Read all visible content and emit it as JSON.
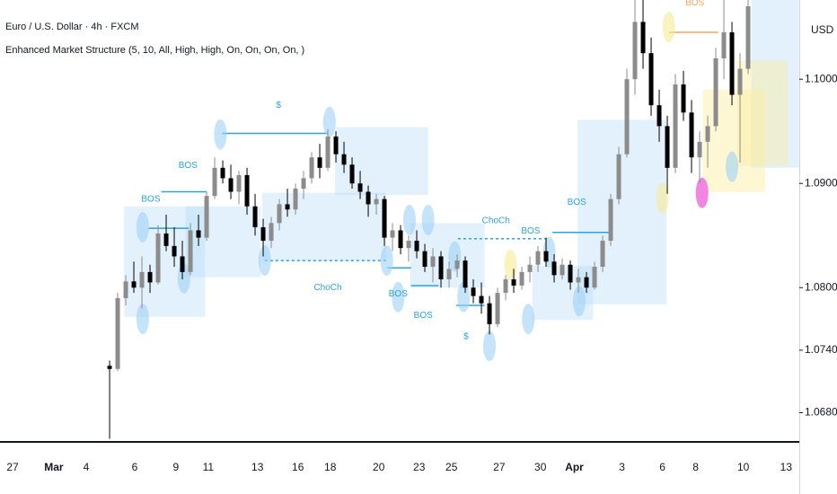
{
  "chart_data": {
    "type": "candlestick",
    "title": "Euro / U.S. Dollar · 4h · FXCM",
    "subtitle": "Enhanced Market Structure (5, 10, All, High, High, On, On, On, On, )",
    "y_label": "USD",
    "up_color": "#8c8c8c",
    "down_color": "#000000",
    "grid": false,
    "xlim": [
      -13.56,
      85.33
    ],
    "ylim": [
      1.0652,
      1.1076
    ],
    "yticks": [
      {
        "value": 1.068,
        "label": "1.06800"
      },
      {
        "value": 1.074,
        "label": "1.07400"
      },
      {
        "value": 1.08,
        "label": "1.08000"
      },
      {
        "value": 1.09,
        "label": "1.09000"
      },
      {
        "value": 1.1,
        "label": "1.10000"
      }
    ],
    "xticks": [
      {
        "value": -12.0,
        "label": "27"
      },
      {
        "value": -6.9,
        "label": "Mar",
        "bold": true
      },
      {
        "value": -2.9,
        "label": "4"
      },
      {
        "value": 3.1,
        "label": "6"
      },
      {
        "value": 8.2,
        "label": "9"
      },
      {
        "value": 12.2,
        "label": "11"
      },
      {
        "value": 18.3,
        "label": "13"
      },
      {
        "value": 23.3,
        "label": "16"
      },
      {
        "value": 27.3,
        "label": "18"
      },
      {
        "value": 33.3,
        "label": "20"
      },
      {
        "value": 38.3,
        "label": "23"
      },
      {
        "value": 42.3,
        "label": "25"
      },
      {
        "value": 48.2,
        "label": "27"
      },
      {
        "value": 53.3,
        "label": "30"
      },
      {
        "value": 57.5,
        "label": "Apr",
        "bold": true
      },
      {
        "value": 63.4,
        "label": "3"
      },
      {
        "value": 68.4,
        "label": "6"
      },
      {
        "value": 72.5,
        "label": "8"
      },
      {
        "value": 78.4,
        "label": "10"
      },
      {
        "value": 83.7,
        "label": "13"
      }
    ],
    "x": [
      0,
      1,
      2,
      3,
      4,
      5,
      6,
      7,
      8,
      9,
      10,
      11,
      12,
      13,
      14,
      15,
      16,
      17,
      18,
      19,
      20,
      21,
      22,
      23,
      24,
      25,
      26,
      27,
      28,
      29,
      30,
      31,
      32,
      33,
      34,
      35,
      36,
      37,
      38,
      39,
      40,
      41,
      42,
      43,
      44,
      45,
      46,
      47,
      48,
      49,
      50,
      51,
      52,
      53,
      54,
      55,
      56,
      57,
      58,
      59,
      60,
      61,
      62,
      63,
      64,
      65,
      66,
      67,
      68,
      69,
      70,
      71,
      72,
      73,
      74,
      75,
      76,
      77,
      78,
      79
    ],
    "open": [
      1.0725,
      1.0722,
      1.079,
      1.0806,
      1.08,
      1.0815,
      1.0805,
      1.0852,
      1.084,
      1.083,
      1.0815,
      1.0855,
      1.0848,
      1.0888,
      1.0915,
      1.0905,
      1.0892,
      1.0908,
      1.0878,
      1.0858,
      1.0845,
      1.0862,
      1.088,
      1.0875,
      1.0895,
      1.0905,
      1.0925,
      1.0915,
      1.0945,
      1.0928,
      1.0918,
      1.09,
      1.0892,
      1.088,
      1.0885,
      1.0848,
      1.0855,
      1.0838,
      1.0845,
      1.0835,
      1.082,
      1.083,
      1.0808,
      1.0818,
      1.0826,
      1.08,
      1.0792,
      1.0785,
      1.0765,
      1.0795,
      1.0808,
      1.0802,
      1.0815,
      1.0822,
      1.0835,
      1.0825,
      1.0812,
      1.0822,
      1.0805,
      1.081,
      1.08,
      1.082,
      1.0845,
      1.0885,
      1.0928,
      1.1,
      1.1055,
      1.1025,
      1.0975,
      1.0955,
      1.0915,
      1.0995,
      1.0968,
      1.0925,
      1.094,
      1.0955,
      1.102,
      1.1045,
      1.0985,
      1.101
    ],
    "high": [
      1.073,
      1.0795,
      1.0812,
      1.0825,
      1.083,
      1.0822,
      1.086,
      1.087,
      1.0858,
      1.0845,
      1.0862,
      1.087,
      1.0892,
      1.0925,
      1.0922,
      1.0918,
      1.0912,
      1.0915,
      1.089,
      1.0866,
      1.0868,
      1.0885,
      1.0895,
      1.09,
      1.0912,
      1.093,
      1.0938,
      1.0952,
      1.095,
      1.094,
      1.0925,
      1.0912,
      1.0898,
      1.089,
      1.0888,
      1.0862,
      1.086,
      1.085,
      1.0855,
      1.0842,
      1.0838,
      1.0835,
      1.0825,
      1.0832,
      1.083,
      1.0808,
      1.0805,
      1.0792,
      1.08,
      1.0812,
      1.0818,
      1.082,
      1.083,
      1.084,
      1.0848,
      1.0832,
      1.0828,
      1.0826,
      1.0818,
      1.0815,
      1.0825,
      1.085,
      1.089,
      1.0935,
      1.101,
      1.1076,
      1.1076,
      1.104,
      1.099,
      1.0965,
      1.1005,
      1.1008,
      1.098,
      1.095,
      1.0965,
      1.103,
      1.1076,
      1.1055,
      1.1025,
      1.1076
    ],
    "low": [
      1.0655,
      1.072,
      1.0783,
      1.0795,
      1.078,
      1.0795,
      1.0803,
      1.0835,
      1.082,
      1.0808,
      1.0812,
      1.084,
      1.0845,
      1.0885,
      1.09,
      1.0885,
      1.088,
      1.087,
      1.085,
      1.083,
      1.0838,
      1.0855,
      1.0868,
      1.087,
      1.0885,
      1.09,
      1.0905,
      1.0912,
      1.092,
      1.091,
      1.0895,
      1.0885,
      1.0868,
      1.087,
      1.084,
      1.0835,
      1.0832,
      1.0825,
      1.0828,
      1.0815,
      1.0805,
      1.08,
      1.08,
      1.081,
      1.0795,
      1.0785,
      1.0775,
      1.0755,
      1.0762,
      1.0788,
      1.0795,
      1.0798,
      1.0805,
      1.0815,
      1.082,
      1.0805,
      1.0808,
      1.0798,
      1.0795,
      1.0795,
      1.0798,
      1.0815,
      1.084,
      1.088,
      1.0925,
      1.0985,
      1.101,
      1.0965,
      1.094,
      1.089,
      1.091,
      1.096,
      1.091,
      1.09,
      1.0915,
      1.095,
      1.1,
      1.0975,
      1.092,
      1.1005
    ],
    "close": [
      1.0722,
      1.079,
      1.0806,
      1.08,
      1.0815,
      1.0805,
      1.0852,
      1.084,
      1.083,
      1.0815,
      1.0855,
      1.0848,
      1.0888,
      1.0915,
      1.0905,
      1.0892,
      1.0908,
      1.0878,
      1.0858,
      1.0845,
      1.0862,
      1.088,
      1.0875,
      1.0895,
      1.0905,
      1.0925,
      1.0915,
      1.0945,
      1.0928,
      1.0918,
      1.09,
      1.0892,
      1.088,
      1.0885,
      1.0848,
      1.0855,
      1.0838,
      1.0845,
      1.0835,
      1.082,
      1.083,
      1.0808,
      1.0818,
      1.0826,
      1.08,
      1.0792,
      1.0785,
      1.0765,
      1.0795,
      1.0808,
      1.0802,
      1.0815,
      1.0822,
      1.0835,
      1.0825,
      1.0812,
      1.0822,
      1.0805,
      1.081,
      1.08,
      1.082,
      1.0845,
      1.0885,
      1.0928,
      1.1,
      1.1055,
      1.1025,
      1.0975,
      1.0955,
      1.0915,
      1.0995,
      1.0968,
      1.0925,
      1.094,
      1.0955,
      1.102,
      1.1045,
      1.0985,
      1.101,
      1.107
    ],
    "zones": [
      {
        "x": [
          1.8,
          11.8
        ],
        "y": [
          1.0772,
          1.0878
        ],
        "color": "rgba(173,216,245,0.35)"
      },
      {
        "x": [
          9.4,
          18.7
        ],
        "y": [
          1.081,
          1.0878
        ],
        "color": "rgba(173,216,245,0.35)"
      },
      {
        "x": [
          18.9,
          34.2
        ],
        "y": [
          1.0826,
          1.0891
        ],
        "color": "rgba(173,216,245,0.35)"
      },
      {
        "x": [
          27.9,
          39.4
        ],
        "y": [
          1.0889,
          1.0954
        ],
        "color": "rgba(173,216,245,0.35)"
      },
      {
        "x": [
          37.2,
          46.4
        ],
        "y": [
          1.08,
          1.0862
        ],
        "color": "rgba(173,216,245,0.35)"
      },
      {
        "x": [
          52.3,
          59.8
        ],
        "y": [
          1.0769,
          1.0821
        ],
        "color": "rgba(173,216,245,0.35)"
      },
      {
        "x": [
          57.9,
          68.9
        ],
        "y": [
          1.0784,
          1.0961
        ],
        "color": "rgba(173,216,245,0.35)"
      },
      {
        "x": [
          79.4,
          85.3
        ],
        "y": [
          1.0915,
          1.1076
        ],
        "color": "rgba(173,216,245,0.35)"
      },
      {
        "x": [
          73.4,
          81.1
        ],
        "y": [
          1.0892,
          1.099
        ],
        "color": "rgba(250,238,160,0.45)"
      },
      {
        "x": [
          77.6,
          83.9
        ],
        "y": [
          1.0917,
          1.1018
        ],
        "color": "rgba(250,238,160,0.45)"
      }
    ],
    "levels": [
      {
        "x": [
          4.8,
          9.8
        ],
        "y": 1.0857,
        "dashed": false,
        "color": "#29a3e3"
      },
      {
        "x": [
          6.4,
          12.0
        ],
        "y": 1.0892,
        "dashed": false,
        "color": "#29a3e3"
      },
      {
        "x": [
          13.9,
          27.0
        ],
        "y": 1.0948,
        "dashed": false,
        "color": "#29a3e3"
      },
      {
        "x": [
          19.2,
          34.2
        ],
        "y": 1.0826,
        "dashed": true,
        "color": "#29a3e3"
      },
      {
        "x": [
          34.4,
          37.3
        ],
        "y": 1.0819,
        "dashed": false,
        "color": "#29a3e3"
      },
      {
        "x": [
          37.3,
          40.7
        ],
        "y": 1.0802,
        "dashed": false,
        "color": "#29a3e3"
      },
      {
        "x": [
          42.9,
          46.4
        ],
        "y": 1.0783,
        "dashed": false,
        "color": "#29a3e3"
      },
      {
        "x": [
          43.1,
          54.2
        ],
        "y": 1.0847,
        "dashed": true,
        "color": "#29a3e3"
      },
      {
        "x": [
          54.8,
          62.0
        ],
        "y": 1.0853,
        "dashed": false,
        "color": "#29a3e3"
      },
      {
        "x": [
          69.2,
          75.3
        ],
        "y": 1.1045,
        "dashed": false,
        "color": "#f5a55a"
      }
    ],
    "markers": [
      {
        "x": 4.1,
        "y": 1.0858,
        "color": "rgba(160,210,245,0.6)"
      },
      {
        "x": 4.1,
        "y": 1.077,
        "color": "rgba(160,210,245,0.6)"
      },
      {
        "x": 9.2,
        "y": 1.0809,
        "color": "rgba(160,210,245,0.6)"
      },
      {
        "x": 13.7,
        "y": 1.0947,
        "color": "rgba(160,210,245,0.6)"
      },
      {
        "x": 19.2,
        "y": 1.0826,
        "color": "rgba(160,210,245,0.6)"
      },
      {
        "x": 27.2,
        "y": 1.0959,
        "color": "rgba(160,210,245,0.6)"
      },
      {
        "x": 34.3,
        "y": 1.0826,
        "color": "rgba(160,210,245,0.6)"
      },
      {
        "x": 35.7,
        "y": 1.0791,
        "color": "rgba(160,210,245,0.6)"
      },
      {
        "x": 37.1,
        "y": 1.0865,
        "color": "rgba(160,210,245,0.6)"
      },
      {
        "x": 39.4,
        "y": 1.0865,
        "color": "rgba(160,210,245,0.6)"
      },
      {
        "x": 42.7,
        "y": 1.083,
        "color": "rgba(160,210,245,0.6)"
      },
      {
        "x": 43.8,
        "y": 1.0791,
        "color": "rgba(160,210,245,0.6)"
      },
      {
        "x": 47.0,
        "y": 1.0744,
        "color": "rgba(160,210,245,0.6)"
      },
      {
        "x": 49.6,
        "y": 1.0822,
        "color": "rgba(245,235,150,0.6)"
      },
      {
        "x": 51.8,
        "y": 1.077,
        "color": "rgba(160,210,245,0.6)"
      },
      {
        "x": 54.4,
        "y": 1.0834,
        "color": "rgba(160,210,245,0.6)"
      },
      {
        "x": 58.1,
        "y": 1.0787,
        "color": "rgba(160,210,245,0.6)"
      },
      {
        "x": 68.4,
        "y": 1.0886,
        "color": "rgba(245,235,150,0.6)"
      },
      {
        "x": 69.2,
        "y": 1.105,
        "color": "rgba(245,235,150,0.6)"
      },
      {
        "x": 73.3,
        "y": 1.0891,
        "color": "rgba(240,120,225,0.9)"
      },
      {
        "x": 77.0,
        "y": 1.0916,
        "color": "rgba(160,210,245,0.6)"
      }
    ],
    "annotations": [
      {
        "text": "$",
        "x": 20.9,
        "y": 1.0975,
        "color": "#29a3e3"
      },
      {
        "text": "BOS",
        "x": 9.7,
        "y": 1.0917,
        "color": "#29a3e3"
      },
      {
        "text": "BOS",
        "x": 5.1,
        "y": 1.0885,
        "color": "#29a3e3"
      },
      {
        "text": "ChoCh",
        "x": 27.0,
        "y": 1.08,
        "color": "#29a3e3"
      },
      {
        "text": "BOS",
        "x": 35.7,
        "y": 1.0794,
        "color": "#29a3e3"
      },
      {
        "text": "BOS",
        "x": 38.8,
        "y": 1.0773,
        "color": "#29a3e3"
      },
      {
        "text": "$",
        "x": 44.1,
        "y": 1.0753,
        "color": "#29a3e3"
      },
      {
        "text": "ChoCh",
        "x": 47.8,
        "y": 1.0864,
        "color": "#29a3e3"
      },
      {
        "text": "BOS",
        "x": 52.1,
        "y": 1.0854,
        "color": "#29a3e3"
      },
      {
        "text": "BOS",
        "x": 57.8,
        "y": 1.0882,
        "color": "#29a3e3"
      },
      {
        "text": "BOS",
        "x": 72.4,
        "y": 1.1073,
        "color": "#f5a55a"
      }
    ]
  }
}
